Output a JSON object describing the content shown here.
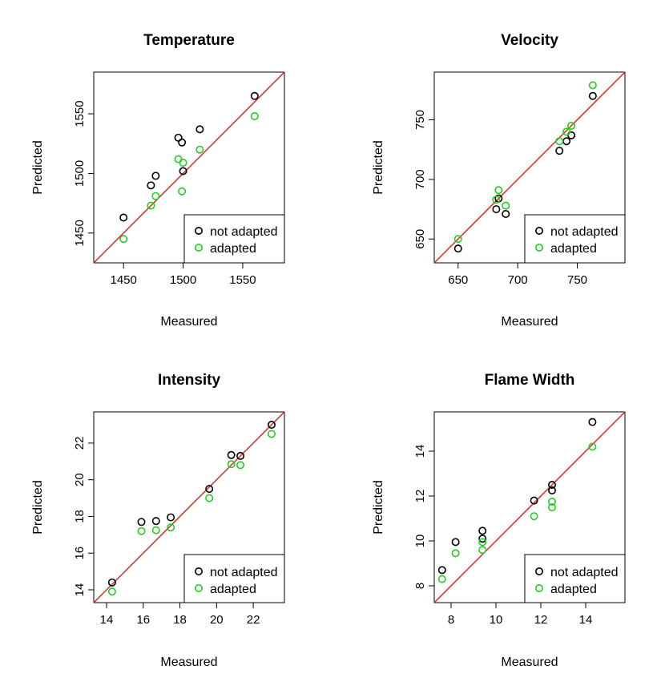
{
  "colors": {
    "not_adapted": "#000000",
    "adapted": "#22cc22",
    "identity_line": "#dd2222",
    "axis": "#000000"
  },
  "chart_data": [
    {
      "type": "scatter",
      "title": "Temperature",
      "xlabel": "Measured",
      "ylabel": "Predicted",
      "xlim": [
        1425,
        1585
      ],
      "ylim": [
        1425,
        1585
      ],
      "xticks": [
        1450,
        1500,
        1550
      ],
      "yticks": [
        1450,
        1500,
        1550
      ],
      "legend": {
        "placement": "bottom-right",
        "entries": [
          "not adapted",
          "adapted"
        ]
      },
      "reference_line": "y = x",
      "series": [
        {
          "name": "not adapted",
          "x": [
            1450,
            1473,
            1477,
            1496,
            1499,
            1500,
            1514,
            1560
          ],
          "y": [
            1463,
            1490,
            1498,
            1530,
            1526,
            1502,
            1537,
            1565
          ]
        },
        {
          "name": "adapted",
          "x": [
            1450,
            1473,
            1477,
            1496,
            1499,
            1500,
            1514,
            1560
          ],
          "y": [
            1445,
            1473,
            1481,
            1512,
            1485,
            1509,
            1520,
            1548
          ]
        }
      ]
    },
    {
      "type": "scatter",
      "title": "Velocity",
      "xlabel": "Measured",
      "ylabel": "Predicted",
      "xlim": [
        630,
        790
      ],
      "ylim": [
        630,
        790
      ],
      "xticks": [
        650,
        700,
        750
      ],
      "yticks": [
        650,
        700,
        750
      ],
      "legend": {
        "placement": "bottom-right",
        "entries": [
          "not adapted",
          "adapted"
        ]
      },
      "reference_line": "y = x",
      "series": [
        {
          "name": "not adapted",
          "x": [
            650,
            682,
            684,
            690,
            735,
            741,
            745,
            763
          ],
          "y": [
            642,
            675,
            684,
            671,
            724,
            732,
            737,
            770
          ]
        },
        {
          "name": "adapted",
          "x": [
            650,
            682,
            684,
            690,
            735,
            741,
            745,
            763
          ],
          "y": [
            650,
            683,
            691,
            678,
            732,
            740,
            745,
            779
          ]
        }
      ]
    },
    {
      "type": "scatter",
      "title": "Intensity",
      "xlabel": "Measured",
      "ylabel": "Predicted",
      "xlim": [
        13.3,
        23.7
      ],
      "ylim": [
        13.3,
        23.7
      ],
      "xticks": [
        14,
        16,
        18,
        20,
        22
      ],
      "yticks": [
        14,
        16,
        18,
        20,
        22
      ],
      "legend": {
        "placement": "bottom-right",
        "entries": [
          "not adapted",
          "adapted"
        ]
      },
      "reference_line": "y = x",
      "series": [
        {
          "name": "not adapted",
          "x": [
            14.3,
            15.9,
            16.7,
            17.5,
            19.6,
            20.8,
            21.3,
            23.0
          ],
          "y": [
            14.4,
            17.7,
            17.75,
            17.95,
            19.5,
            21.35,
            21.3,
            23.0
          ]
        },
        {
          "name": "adapted",
          "x": [
            14.3,
            15.9,
            16.7,
            17.5,
            19.6,
            20.8,
            21.3,
            23.0
          ],
          "y": [
            13.9,
            17.2,
            17.25,
            17.4,
            19.0,
            20.85,
            20.8,
            22.5
          ]
        }
      ]
    },
    {
      "type": "scatter",
      "title": "Flame Width",
      "xlabel": "Measured",
      "ylabel": "Predicted",
      "xlim": [
        7.25,
        15.75
      ],
      "ylim": [
        7.25,
        15.75
      ],
      "xticks": [
        8,
        10,
        12,
        14
      ],
      "yticks": [
        8,
        10,
        12,
        14
      ],
      "legend": {
        "placement": "bottom-right",
        "entries": [
          "not adapted",
          "adapted"
        ]
      },
      "reference_line": "y = x",
      "series": [
        {
          "name": "not adapted",
          "x": [
            7.6,
            8.2,
            9.4,
            9.4,
            11.7,
            12.5,
            12.5,
            14.3
          ],
          "y": [
            8.7,
            9.95,
            10.45,
            10.1,
            11.8,
            12.5,
            12.25,
            15.3
          ]
        },
        {
          "name": "adapted",
          "x": [
            7.6,
            8.2,
            9.4,
            9.4,
            11.7,
            12.5,
            12.5,
            14.3
          ],
          "y": [
            8.3,
            9.45,
            9.6,
            9.95,
            11.1,
            11.75,
            11.5,
            14.2
          ]
        }
      ]
    }
  ]
}
